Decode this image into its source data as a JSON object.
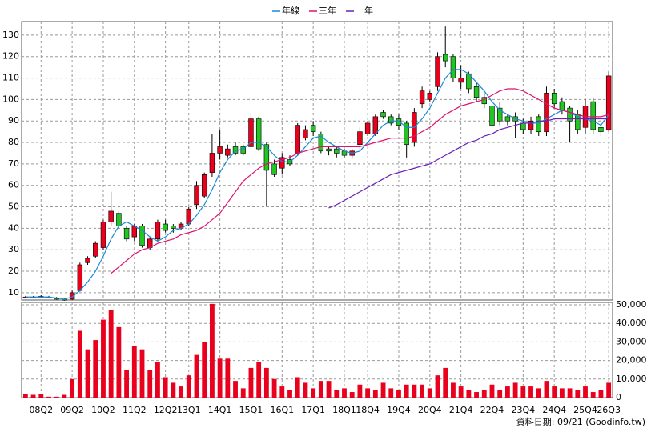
{
  "chart_data": {
    "type": "candlestick",
    "categories": [
      null,
      null,
      "08Q2",
      null,
      null,
      null,
      "09Q2",
      null,
      null,
      null,
      "10Q2",
      null,
      null,
      null,
      "11Q2",
      null,
      null,
      null,
      "12Q2",
      null,
      null,
      "13Q1",
      null,
      null,
      null,
      "14Q1",
      null,
      null,
      null,
      "15Q1",
      null,
      null,
      null,
      "16Q1",
      null,
      null,
      null,
      "17Q1",
      null,
      null,
      null,
      "18Q1",
      null,
      null,
      "18Q4",
      null,
      null,
      null,
      "19Q4",
      null,
      null,
      null,
      "20Q4",
      null,
      null,
      null,
      "21Q4",
      null,
      null,
      null,
      "22Q4",
      null,
      null,
      null,
      "23Q4",
      null,
      null,
      null,
      "24Q4",
      null,
      null,
      null,
      "25Q4",
      null,
      null,
      "26Q3"
    ],
    "open": [
      8,
      8,
      8.3,
      8,
      7.5,
      7,
      7,
      11,
      24,
      27,
      31,
      43,
      47,
      40,
      36,
      41,
      31,
      35,
      42,
      41,
      40,
      42,
      51,
      55,
      66,
      75,
      74,
      78,
      78,
      78,
      91,
      79,
      70,
      68,
      72,
      75,
      82,
      88,
      84,
      77,
      77,
      76,
      74,
      79,
      84,
      84,
      94,
      92,
      91,
      89,
      80,
      98,
      100,
      106,
      121,
      120,
      108,
      112,
      106,
      101,
      97,
      96,
      92,
      92,
      89,
      86,
      92,
      85,
      103,
      99,
      96,
      93,
      87,
      99,
      87,
      86
    ],
    "high": [
      8.5,
      8.5,
      8.8,
      8.5,
      8,
      7.5,
      11,
      24,
      27,
      34,
      44,
      57,
      48,
      41,
      42,
      42,
      36,
      44,
      44,
      42,
      43,
      50,
      62,
      66,
      84,
      86,
      79,
      80,
      79,
      93,
      92,
      80,
      72,
      75,
      74,
      89,
      88,
      90,
      85,
      78,
      78,
      77,
      77,
      87,
      90,
      93,
      95,
      93,
      93,
      90,
      96,
      106,
      104,
      122,
      134,
      121,
      116,
      113,
      108,
      103,
      100,
      99,
      93,
      94,
      91,
      92,
      93,
      106,
      105,
      101,
      97,
      95,
      100,
      101,
      89,
      113
    ],
    "low": [
      7.5,
      7.5,
      7.8,
      7.5,
      6.8,
      6.3,
      6.5,
      10.5,
      23,
      26,
      30,
      41,
      40,
      34,
      34,
      31,
      30,
      34,
      38,
      38,
      39,
      41,
      49,
      54,
      64,
      72,
      73,
      74,
      74,
      77,
      76,
      50,
      64,
      65,
      69,
      74,
      81,
      83,
      75,
      74,
      73,
      73,
      73,
      77,
      83,
      83,
      91,
      88,
      86,
      73,
      78,
      96,
      99,
      104,
      115,
      108,
      105,
      103,
      99,
      96,
      86,
      88,
      88,
      82,
      84,
      84,
      83,
      83,
      96,
      93,
      80,
      84,
      84,
      84,
      83,
      85
    ],
    "close": [
      8,
      8,
      8.3,
      8,
      7,
      6.5,
      10,
      23,
      26,
      33,
      43,
      48,
      41,
      35,
      41,
      32,
      35,
      43,
      39,
      40,
      42,
      49,
      60,
      65,
      75,
      78,
      77,
      75,
      75,
      91,
      77,
      67,
      65,
      73,
      70,
      88,
      86,
      85,
      76,
      76,
      75,
      74,
      76,
      85,
      89,
      92,
      92,
      89,
      88,
      79,
      94,
      104,
      103,
      120,
      118,
      110,
      110,
      105,
      101,
      98,
      88,
      90,
      90,
      90,
      86,
      90,
      85,
      103,
      98,
      95,
      90,
      86,
      97,
      86,
      85,
      111
    ],
    "up_color": "#e8001c",
    "down_color": "#22c522",
    "series": [
      {
        "name": "年線",
        "color": "#1a8ad6",
        "values": [
          8,
          8,
          8,
          8,
          7.5,
          7,
          8,
          11,
          15,
          20,
          27,
          35,
          41,
          43,
          41,
          39,
          36,
          34,
          36,
          39,
          40,
          42,
          46,
          51,
          58,
          66,
          72,
          76,
          77,
          80,
          80,
          78,
          74,
          71,
          71,
          74,
          78,
          82,
          83,
          80,
          78,
          76,
          75,
          76,
          80,
          84,
          88,
          90,
          90,
          87,
          87,
          91,
          96,
          103,
          110,
          114,
          114,
          112,
          108,
          104,
          99,
          95,
          93,
          91,
          90,
          89,
          89,
          91,
          93,
          95,
          94,
          92,
          91,
          90,
          88,
          93
        ]
      },
      {
        "name": "三年",
        "color": "#e0106e",
        "values": [
          null,
          null,
          null,
          null,
          null,
          null,
          null,
          null,
          null,
          null,
          null,
          19,
          22,
          25,
          28,
          30,
          31,
          33,
          34,
          35,
          37,
          38,
          39,
          41,
          44,
          47,
          52,
          57,
          62,
          65,
          68,
          70,
          71,
          72,
          73,
          75,
          76,
          77,
          78,
          78,
          78,
          78,
          78,
          78,
          79,
          80,
          81,
          82,
          82,
          82,
          83,
          85,
          87,
          90,
          93,
          95,
          97,
          98,
          99,
          100,
          102,
          104,
          105,
          105,
          104,
          102,
          100,
          98,
          96,
          95,
          94,
          93,
          92,
          92,
          92,
          93
        ]
      },
      {
        "name": "十年",
        "color": "#6a1fb8",
        "values": [
          null,
          null,
          null,
          null,
          null,
          null,
          null,
          null,
          null,
          null,
          null,
          null,
          null,
          null,
          null,
          null,
          null,
          null,
          null,
          null,
          null,
          null,
          null,
          null,
          null,
          null,
          null,
          null,
          null,
          null,
          null,
          null,
          null,
          null,
          null,
          null,
          null,
          null,
          null,
          49.5,
          51,
          53,
          55,
          57,
          59,
          61,
          63,
          65,
          66,
          67,
          68,
          69,
          70,
          72,
          74,
          76,
          78,
          80,
          81,
          83,
          84,
          86,
          87,
          88,
          89,
          89,
          90,
          90,
          91,
          91,
          91,
          91,
          91,
          91,
          91,
          91
        ]
      }
    ],
    "ylim": [
      6.6,
      136.3
    ],
    "yticks": [
      10,
      20,
      30,
      40,
      50,
      60,
      70,
      80,
      90,
      100,
      110,
      120,
      130
    ],
    "grid": true,
    "volume": {
      "color": "#e8001c",
      "values": [
        2000,
        1500,
        2000,
        500,
        500,
        1500,
        10000,
        36000,
        26000,
        31000,
        42000,
        47000,
        38000,
        15000,
        28000,
        26000,
        15000,
        19000,
        11000,
        8000,
        6000,
        12000,
        23000,
        30000,
        50500,
        21000,
        21000,
        9000,
        5000,
        16000,
        19000,
        16000,
        10000,
        6000,
        4000,
        11000,
        8000,
        5000,
        9000,
        9000,
        4000,
        5000,
        3000,
        7000,
        5000,
        4000,
        8000,
        5000,
        4000,
        7000,
        7000,
        7000,
        5000,
        12000,
        16000,
        8000,
        6000,
        4000,
        3000,
        4000,
        7000,
        4000,
        6000,
        8000,
        6000,
        6000,
        5000,
        9000,
        6000,
        5000,
        5000,
        4000,
        6000,
        3000,
        4000,
        8000
      ],
      "ylim": [
        0,
        51300
      ],
      "yticks": [
        0,
        {
          "value": 10000,
          "label": "10,000"
        },
        {
          "value": 20000,
          "label": "20,000"
        },
        {
          "value": 30000,
          "label": "30,000"
        },
        {
          "value": 40000,
          "label": "40,000"
        },
        {
          "value": 50000,
          "label": "50,000"
        }
      ]
    },
    "source_note": "資料日期: 09/21  (Goodinfo.tw)"
  }
}
